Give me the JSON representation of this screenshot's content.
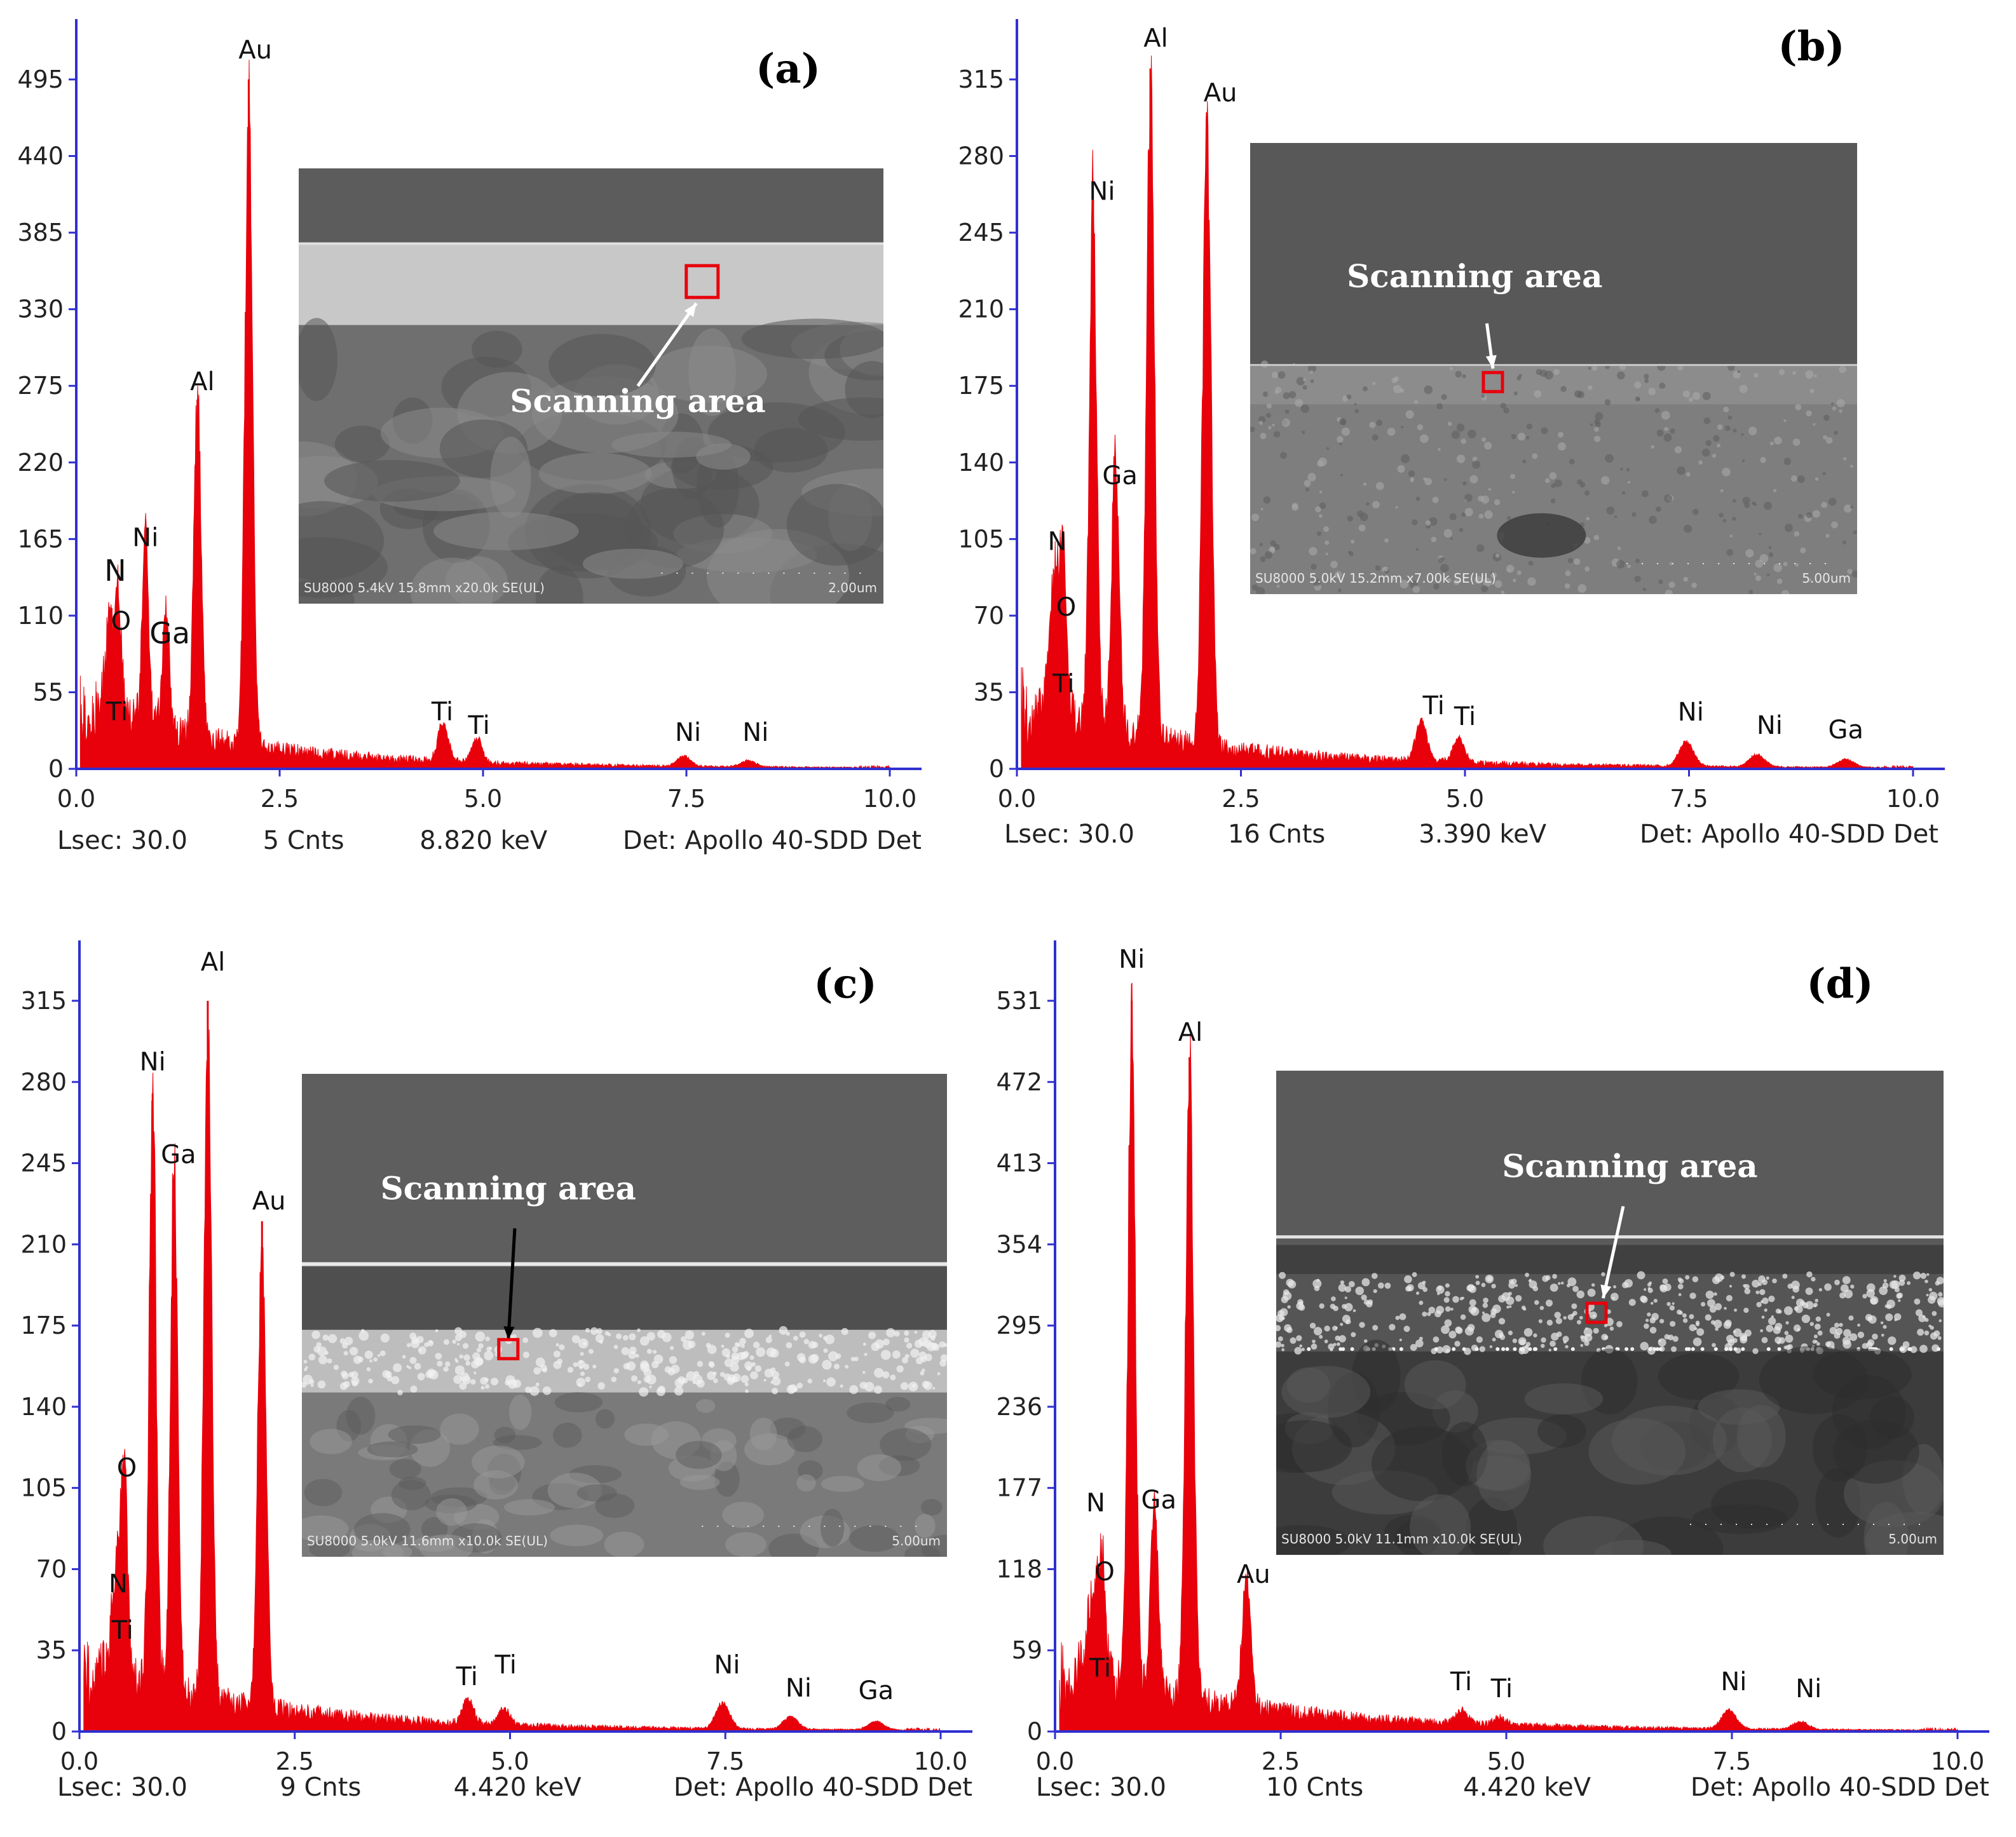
{
  "colors": {
    "spectrum": "#e8000b",
    "axis": "#3030d0",
    "marker": "#e8000b"
  },
  "chart_data": [
    {
      "type": "area",
      "panel": "(a)",
      "xlim": [
        0,
        10
      ],
      "ylim": [
        0,
        495
      ],
      "x_ticks": [
        "0.0",
        "2.5",
        "5.0",
        "7.5",
        "10.0"
      ],
      "y_ticks": [
        "0",
        "55",
        "110",
        "165",
        "220",
        "275",
        "330",
        "385",
        "440",
        "495"
      ],
      "peaks": [
        {
          "element": "Ti",
          "x": 0.45,
          "y": 40
        },
        {
          "element": "O",
          "x": 0.52,
          "y": 95
        },
        {
          "element": "N",
          "x": 0.39,
          "y": 60
        },
        {
          "element": "Ni",
          "x": 0.85,
          "y": 145
        },
        {
          "element": "Ga",
          "x": 1.1,
          "y": 95
        },
        {
          "element": "Al",
          "x": 1.49,
          "y": 265
        },
        {
          "element": "Au",
          "x": 2.12,
          "y": 495
        },
        {
          "element": "Ti",
          "x": 4.51,
          "y": 30
        },
        {
          "element": "Ti",
          "x": 4.93,
          "y": 18
        },
        {
          "element": "Ni",
          "x": 7.47,
          "y": 8
        },
        {
          "element": "Ni",
          "x": 8.26,
          "y": 5
        }
      ],
      "labels": [
        {
          "text": "Au",
          "x": 2.2,
          "y": 510,
          "size": 40
        },
        {
          "text": "Al",
          "x": 1.55,
          "y": 272,
          "size": 40
        },
        {
          "text": "Ni",
          "x": 0.85,
          "y": 160,
          "size": 40
        },
        {
          "text": "N",
          "x": 0.48,
          "y": 135,
          "size": 46
        },
        {
          "text": "O",
          "x": 0.55,
          "y": 100,
          "size": 40
        },
        {
          "text": "Ga",
          "x": 1.15,
          "y": 90,
          "size": 46
        },
        {
          "text": "Ti",
          "x": 0.5,
          "y": 35,
          "size": 40
        },
        {
          "text": "Ti",
          "x": 4.5,
          "y": 35,
          "size": 40
        },
        {
          "text": "Ti",
          "x": 4.95,
          "y": 25,
          "size": 40
        },
        {
          "text": "Ni",
          "x": 7.52,
          "y": 20,
          "size": 40
        },
        {
          "text": "Ni",
          "x": 8.35,
          "y": 20,
          "size": 40
        }
      ],
      "footer": {
        "lsec": "Lsec: 30.0",
        "cnts": "5 Cnts",
        "kev": "8.820 keV",
        "det": "Det: Apollo 40-SDD Det"
      },
      "sem": {
        "scanning_label": "Scanning area",
        "info": "SU8000 5.4kV 15.8mm x20.0k SE(UL)",
        "scale": "2.00um"
      }
    },
    {
      "type": "area",
      "panel": "(b)",
      "xlim": [
        0,
        10
      ],
      "ylim": [
        0,
        315
      ],
      "x_ticks": [
        "0.0",
        "2.5",
        "5.0",
        "7.5",
        "10.0"
      ],
      "y_ticks": [
        "0",
        "35",
        "70",
        "105",
        "140",
        "175",
        "210",
        "245",
        "280",
        "315"
      ],
      "peaks": [
        {
          "element": "Ti",
          "x": 0.45,
          "y": 45
        },
        {
          "element": "O",
          "x": 0.52,
          "y": 75
        },
        {
          "element": "N",
          "x": 0.39,
          "y": 50
        },
        {
          "element": "Ni",
          "x": 0.85,
          "y": 260
        },
        {
          "element": "Ga",
          "x": 1.1,
          "y": 135
        },
        {
          "element": "Al",
          "x": 1.49,
          "y": 320
        },
        {
          "element": "Au",
          "x": 2.12,
          "y": 300
        },
        {
          "element": "Ti",
          "x": 4.51,
          "y": 20
        },
        {
          "element": "Ti",
          "x": 4.93,
          "y": 12
        },
        {
          "element": "Ni",
          "x": 7.47,
          "y": 12
        },
        {
          "element": "Ni",
          "x": 8.26,
          "y": 6
        },
        {
          "element": "Ga",
          "x": 9.25,
          "y": 4
        }
      ],
      "labels": [
        {
          "text": "Al",
          "x": 1.55,
          "y": 330,
          "size": 40
        },
        {
          "text": "Au",
          "x": 2.27,
          "y": 305,
          "size": 40
        },
        {
          "text": "Ni",
          "x": 0.95,
          "y": 260,
          "size": 40
        },
        {
          "text": "Ga",
          "x": 1.15,
          "y": 130,
          "size": 40
        },
        {
          "text": "N",
          "x": 0.45,
          "y": 100,
          "size": 40
        },
        {
          "text": "O",
          "x": 0.55,
          "y": 70,
          "size": 40
        },
        {
          "text": "Ti",
          "x": 0.52,
          "y": 35,
          "size": 40
        },
        {
          "text": "Ti",
          "x": 4.65,
          "y": 25,
          "size": 40
        },
        {
          "text": "Ti",
          "x": 5.0,
          "y": 20,
          "size": 40
        },
        {
          "text": "Ni",
          "x": 7.52,
          "y": 22,
          "size": 40
        },
        {
          "text": "Ni",
          "x": 8.4,
          "y": 16,
          "size": 40
        },
        {
          "text": "Ga",
          "x": 9.25,
          "y": 14,
          "size": 40
        }
      ],
      "footer": {
        "lsec": "Lsec: 30.0",
        "cnts": "16 Cnts",
        "kev": "3.390 keV",
        "det": "Det: Apollo 40-SDD Det"
      },
      "sem": {
        "scanning_label": "Scanning area",
        "info": "SU8000 5.0kV 15.2mm x7.00k SE(UL)",
        "scale": "5.00um"
      }
    },
    {
      "type": "area",
      "panel": "(c)",
      "xlim": [
        0,
        10
      ],
      "ylim": [
        0,
        315
      ],
      "x_ticks": [
        "0.0",
        "2.5",
        "5.0",
        "7.5",
        "10.0"
      ],
      "y_ticks": [
        "0",
        "35",
        "70",
        "105",
        "140",
        "175",
        "210",
        "245",
        "280",
        "315"
      ],
      "peaks": [
        {
          "element": "Ti",
          "x": 0.45,
          "y": 30
        },
        {
          "element": "N",
          "x": 0.39,
          "y": 35
        },
        {
          "element": "O",
          "x": 0.52,
          "y": 100
        },
        {
          "element": "Ni",
          "x": 0.85,
          "y": 275
        },
        {
          "element": "Ga",
          "x": 1.1,
          "y": 240
        },
        {
          "element": "Al",
          "x": 1.49,
          "y": 315
        },
        {
          "element": "Au",
          "x": 2.12,
          "y": 220
        },
        {
          "element": "Ti",
          "x": 4.51,
          "y": 12
        },
        {
          "element": "Ti",
          "x": 4.93,
          "y": 8
        },
        {
          "element": "Ni",
          "x": 7.47,
          "y": 12
        },
        {
          "element": "Ni",
          "x": 8.26,
          "y": 6
        },
        {
          "element": "Ga",
          "x": 9.25,
          "y": 4
        }
      ],
      "labels": [
        {
          "text": "Al",
          "x": 1.55,
          "y": 328,
          "size": 40
        },
        {
          "text": "Ni",
          "x": 0.85,
          "y": 285,
          "size": 40
        },
        {
          "text": "Ga",
          "x": 1.15,
          "y": 245,
          "size": 40
        },
        {
          "text": "Au",
          "x": 2.2,
          "y": 225,
          "size": 40
        },
        {
          "text": "O",
          "x": 0.55,
          "y": 110,
          "size": 40
        },
        {
          "text": "N",
          "x": 0.45,
          "y": 60,
          "size": 40
        },
        {
          "text": "Ti",
          "x": 0.5,
          "y": 40,
          "size": 40
        },
        {
          "text": "Ti",
          "x": 4.5,
          "y": 20,
          "size": 40
        },
        {
          "text": "Ti",
          "x": 4.95,
          "y": 25,
          "size": 40
        },
        {
          "text": "Ni",
          "x": 7.52,
          "y": 25,
          "size": 40
        },
        {
          "text": "Ni",
          "x": 8.35,
          "y": 15,
          "size": 40
        },
        {
          "text": "Ga",
          "x": 9.25,
          "y": 14,
          "size": 40
        }
      ],
      "footer": {
        "lsec": "Lsec: 30.0",
        "cnts": "9 Cnts",
        "kev": "4.420 keV",
        "det": "Det: Apollo 40-SDD Det"
      },
      "sem": {
        "scanning_label": "Scanning area",
        "info": "SU8000 5.0kV 11.6mm x10.0k SE(UL)",
        "scale": "5.00um"
      }
    },
    {
      "type": "area",
      "panel": "(d)",
      "xlim": [
        0,
        10
      ],
      "ylim": [
        0,
        531
      ],
      "x_ticks": [
        "0.0",
        "2.5",
        "5.0",
        "7.5",
        "10.0"
      ],
      "y_ticks": [
        "0",
        "59",
        "118",
        "177",
        "236",
        "295",
        "354",
        "413",
        "472",
        "531"
      ],
      "peaks": [
        {
          "element": "Ti",
          "x": 0.45,
          "y": 40
        },
        {
          "element": "O",
          "x": 0.52,
          "y": 90
        },
        {
          "element": "N",
          "x": 0.39,
          "y": 40
        },
        {
          "element": "Ni",
          "x": 0.85,
          "y": 531
        },
        {
          "element": "Ga",
          "x": 1.1,
          "y": 150
        },
        {
          "element": "Al",
          "x": 1.49,
          "y": 490
        },
        {
          "element": "Au",
          "x": 2.12,
          "y": 100
        },
        {
          "element": "Ti",
          "x": 4.51,
          "y": 10
        },
        {
          "element": "Ti",
          "x": 4.93,
          "y": 6
        },
        {
          "element": "Ni",
          "x": 7.47,
          "y": 15
        },
        {
          "element": "Ni",
          "x": 8.26,
          "y": 6
        }
      ],
      "labels": [
        {
          "text": "Ni",
          "x": 0.85,
          "y": 555,
          "size": 40
        },
        {
          "text": "Al",
          "x": 1.5,
          "y": 502,
          "size": 40
        },
        {
          "text": "N",
          "x": 0.45,
          "y": 160,
          "size": 40
        },
        {
          "text": "Ga",
          "x": 1.15,
          "y": 162,
          "size": 40
        },
        {
          "text": "O",
          "x": 0.55,
          "y": 110,
          "size": 40
        },
        {
          "text": "Au",
          "x": 2.2,
          "y": 108,
          "size": 40
        },
        {
          "text": "Ti",
          "x": 0.5,
          "y": 40,
          "size": 40
        },
        {
          "text": "Ti",
          "x": 4.5,
          "y": 30,
          "size": 40
        },
        {
          "text": "Ti",
          "x": 4.95,
          "y": 25,
          "size": 40
        },
        {
          "text": "Ni",
          "x": 7.52,
          "y": 30,
          "size": 40
        },
        {
          "text": "Ni",
          "x": 8.35,
          "y": 25,
          "size": 40
        }
      ],
      "footer": {
        "lsec": "Lsec: 30.0",
        "cnts": "10 Cnts",
        "kev": "4.420 keV",
        "det": "Det: Apollo 40-SDD Det"
      },
      "sem": {
        "scanning_label": "Scanning area",
        "info": "SU8000 5.0kV 11.1mm x10.0k SE(UL)",
        "scale": "5.00um"
      }
    }
  ]
}
